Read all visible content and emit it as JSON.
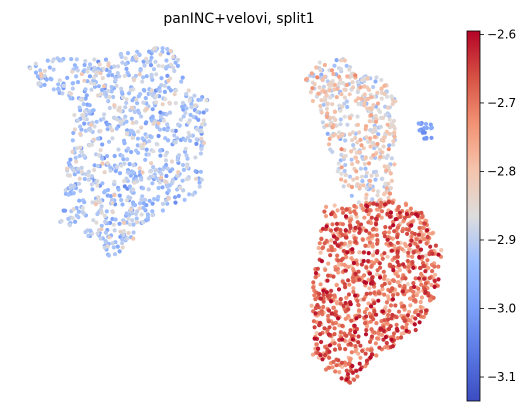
{
  "chart_data": {
    "type": "scatter",
    "title": "panINC+velovi, split1",
    "axes_visible": false,
    "colormap": "coolwarm",
    "colorbar": {
      "vmin": -3.135,
      "vmax": -2.595,
      "ticks": [
        -2.6,
        -2.7,
        -2.8,
        -2.9,
        -3.0,
        -3.1
      ],
      "tick_labels": [
        "−2.6",
        "−2.7",
        "−2.8",
        "−2.9",
        "−3.0",
        "−3.1"
      ],
      "placement": "right"
    },
    "clusters": [
      {
        "name": "left-cluster",
        "level_min": -3.1,
        "level_max": -2.8,
        "mean": -2.92,
        "approx_points": 950
      },
      {
        "name": "upper-right-cluster",
        "level_min": -3.05,
        "level_max": -2.72,
        "mean": -2.85,
        "approx_points": 450
      },
      {
        "name": "lower-right-cluster",
        "level_min": -2.95,
        "level_max": -2.6,
        "mean": -2.7,
        "approx_points": 1050
      }
    ]
  }
}
